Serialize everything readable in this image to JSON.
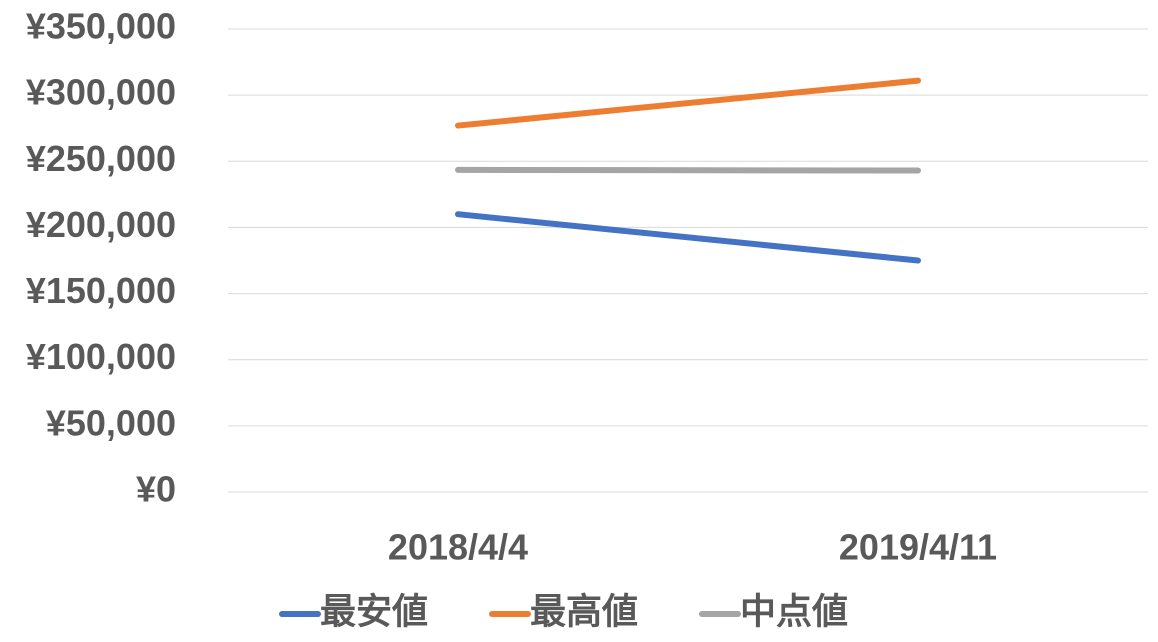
{
  "chart_data": {
    "type": "line",
    "categories": [
      "2018/4/4",
      "2019/4/11"
    ],
    "series": [
      {
        "name": "最安値",
        "color": "#4472c4",
        "values": [
          210000,
          175000
        ]
      },
      {
        "name": "最高値",
        "color": "#ed7d31",
        "values": [
          277000,
          311000
        ]
      },
      {
        "name": "中点値",
        "color": "#a5a5a5",
        "values": [
          243500,
          243000
        ]
      }
    ],
    "ylim": [
      0,
      350000
    ],
    "yticks": [
      {
        "value": 0,
        "label": "¥0"
      },
      {
        "value": 50000,
        "label": "¥50,000"
      },
      {
        "value": 100000,
        "label": "¥100,000"
      },
      {
        "value": 150000,
        "label": "¥150,000"
      },
      {
        "value": 200000,
        "label": "¥200,000"
      },
      {
        "value": 250000,
        "label": "¥250,000"
      },
      {
        "value": 300000,
        "label": "¥300,000"
      },
      {
        "value": 350000,
        "label": "¥350,000"
      }
    ],
    "grid": true,
    "legend": "bottom"
  }
}
